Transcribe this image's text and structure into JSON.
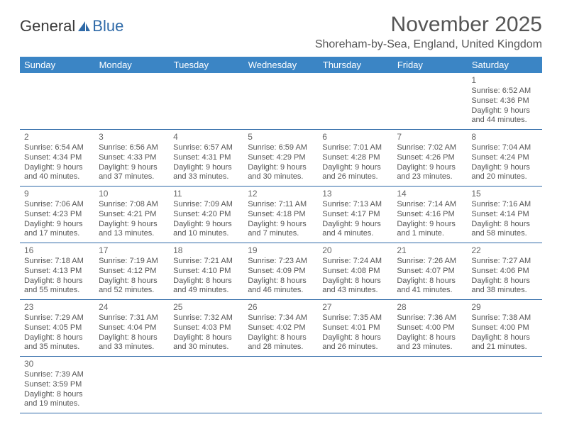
{
  "brand": {
    "part1": "General",
    "part2": "Blue"
  },
  "title": "November 2025",
  "location": "Shoreham-by-Sea, England, United Kingdom",
  "colors": {
    "header_bg": "#3b85c5",
    "header_text": "#ffffff",
    "border": "#2f6aa8",
    "text": "#555555",
    "background": "#ffffff"
  },
  "dayNames": [
    "Sunday",
    "Monday",
    "Tuesday",
    "Wednesday",
    "Thursday",
    "Friday",
    "Saturday"
  ],
  "weeks": [
    [
      null,
      null,
      null,
      null,
      null,
      null,
      {
        "n": "1",
        "sr": "Sunrise: 6:52 AM",
        "ss": "Sunset: 4:36 PM",
        "d1": "Daylight: 9 hours",
        "d2": "and 44 minutes."
      }
    ],
    [
      {
        "n": "2",
        "sr": "Sunrise: 6:54 AM",
        "ss": "Sunset: 4:34 PM",
        "d1": "Daylight: 9 hours",
        "d2": "and 40 minutes."
      },
      {
        "n": "3",
        "sr": "Sunrise: 6:56 AM",
        "ss": "Sunset: 4:33 PM",
        "d1": "Daylight: 9 hours",
        "d2": "and 37 minutes."
      },
      {
        "n": "4",
        "sr": "Sunrise: 6:57 AM",
        "ss": "Sunset: 4:31 PM",
        "d1": "Daylight: 9 hours",
        "d2": "and 33 minutes."
      },
      {
        "n": "5",
        "sr": "Sunrise: 6:59 AM",
        "ss": "Sunset: 4:29 PM",
        "d1": "Daylight: 9 hours",
        "d2": "and 30 minutes."
      },
      {
        "n": "6",
        "sr": "Sunrise: 7:01 AM",
        "ss": "Sunset: 4:28 PM",
        "d1": "Daylight: 9 hours",
        "d2": "and 26 minutes."
      },
      {
        "n": "7",
        "sr": "Sunrise: 7:02 AM",
        "ss": "Sunset: 4:26 PM",
        "d1": "Daylight: 9 hours",
        "d2": "and 23 minutes."
      },
      {
        "n": "8",
        "sr": "Sunrise: 7:04 AM",
        "ss": "Sunset: 4:24 PM",
        "d1": "Daylight: 9 hours",
        "d2": "and 20 minutes."
      }
    ],
    [
      {
        "n": "9",
        "sr": "Sunrise: 7:06 AM",
        "ss": "Sunset: 4:23 PM",
        "d1": "Daylight: 9 hours",
        "d2": "and 17 minutes."
      },
      {
        "n": "10",
        "sr": "Sunrise: 7:08 AM",
        "ss": "Sunset: 4:21 PM",
        "d1": "Daylight: 9 hours",
        "d2": "and 13 minutes."
      },
      {
        "n": "11",
        "sr": "Sunrise: 7:09 AM",
        "ss": "Sunset: 4:20 PM",
        "d1": "Daylight: 9 hours",
        "d2": "and 10 minutes."
      },
      {
        "n": "12",
        "sr": "Sunrise: 7:11 AM",
        "ss": "Sunset: 4:18 PM",
        "d1": "Daylight: 9 hours",
        "d2": "and 7 minutes."
      },
      {
        "n": "13",
        "sr": "Sunrise: 7:13 AM",
        "ss": "Sunset: 4:17 PM",
        "d1": "Daylight: 9 hours",
        "d2": "and 4 minutes."
      },
      {
        "n": "14",
        "sr": "Sunrise: 7:14 AM",
        "ss": "Sunset: 4:16 PM",
        "d1": "Daylight: 9 hours",
        "d2": "and 1 minute."
      },
      {
        "n": "15",
        "sr": "Sunrise: 7:16 AM",
        "ss": "Sunset: 4:14 PM",
        "d1": "Daylight: 8 hours",
        "d2": "and 58 minutes."
      }
    ],
    [
      {
        "n": "16",
        "sr": "Sunrise: 7:18 AM",
        "ss": "Sunset: 4:13 PM",
        "d1": "Daylight: 8 hours",
        "d2": "and 55 minutes."
      },
      {
        "n": "17",
        "sr": "Sunrise: 7:19 AM",
        "ss": "Sunset: 4:12 PM",
        "d1": "Daylight: 8 hours",
        "d2": "and 52 minutes."
      },
      {
        "n": "18",
        "sr": "Sunrise: 7:21 AM",
        "ss": "Sunset: 4:10 PM",
        "d1": "Daylight: 8 hours",
        "d2": "and 49 minutes."
      },
      {
        "n": "19",
        "sr": "Sunrise: 7:23 AM",
        "ss": "Sunset: 4:09 PM",
        "d1": "Daylight: 8 hours",
        "d2": "and 46 minutes."
      },
      {
        "n": "20",
        "sr": "Sunrise: 7:24 AM",
        "ss": "Sunset: 4:08 PM",
        "d1": "Daylight: 8 hours",
        "d2": "and 43 minutes."
      },
      {
        "n": "21",
        "sr": "Sunrise: 7:26 AM",
        "ss": "Sunset: 4:07 PM",
        "d1": "Daylight: 8 hours",
        "d2": "and 41 minutes."
      },
      {
        "n": "22",
        "sr": "Sunrise: 7:27 AM",
        "ss": "Sunset: 4:06 PM",
        "d1": "Daylight: 8 hours",
        "d2": "and 38 minutes."
      }
    ],
    [
      {
        "n": "23",
        "sr": "Sunrise: 7:29 AM",
        "ss": "Sunset: 4:05 PM",
        "d1": "Daylight: 8 hours",
        "d2": "and 35 minutes."
      },
      {
        "n": "24",
        "sr": "Sunrise: 7:31 AM",
        "ss": "Sunset: 4:04 PM",
        "d1": "Daylight: 8 hours",
        "d2": "and 33 minutes."
      },
      {
        "n": "25",
        "sr": "Sunrise: 7:32 AM",
        "ss": "Sunset: 4:03 PM",
        "d1": "Daylight: 8 hours",
        "d2": "and 30 minutes."
      },
      {
        "n": "26",
        "sr": "Sunrise: 7:34 AM",
        "ss": "Sunset: 4:02 PM",
        "d1": "Daylight: 8 hours",
        "d2": "and 28 minutes."
      },
      {
        "n": "27",
        "sr": "Sunrise: 7:35 AM",
        "ss": "Sunset: 4:01 PM",
        "d1": "Daylight: 8 hours",
        "d2": "and 26 minutes."
      },
      {
        "n": "28",
        "sr": "Sunrise: 7:36 AM",
        "ss": "Sunset: 4:00 PM",
        "d1": "Daylight: 8 hours",
        "d2": "and 23 minutes."
      },
      {
        "n": "29",
        "sr": "Sunrise: 7:38 AM",
        "ss": "Sunset: 4:00 PM",
        "d1": "Daylight: 8 hours",
        "d2": "and 21 minutes."
      }
    ],
    [
      {
        "n": "30",
        "sr": "Sunrise: 7:39 AM",
        "ss": "Sunset: 3:59 PM",
        "d1": "Daylight: 8 hours",
        "d2": "and 19 minutes."
      },
      null,
      null,
      null,
      null,
      null,
      null
    ]
  ]
}
